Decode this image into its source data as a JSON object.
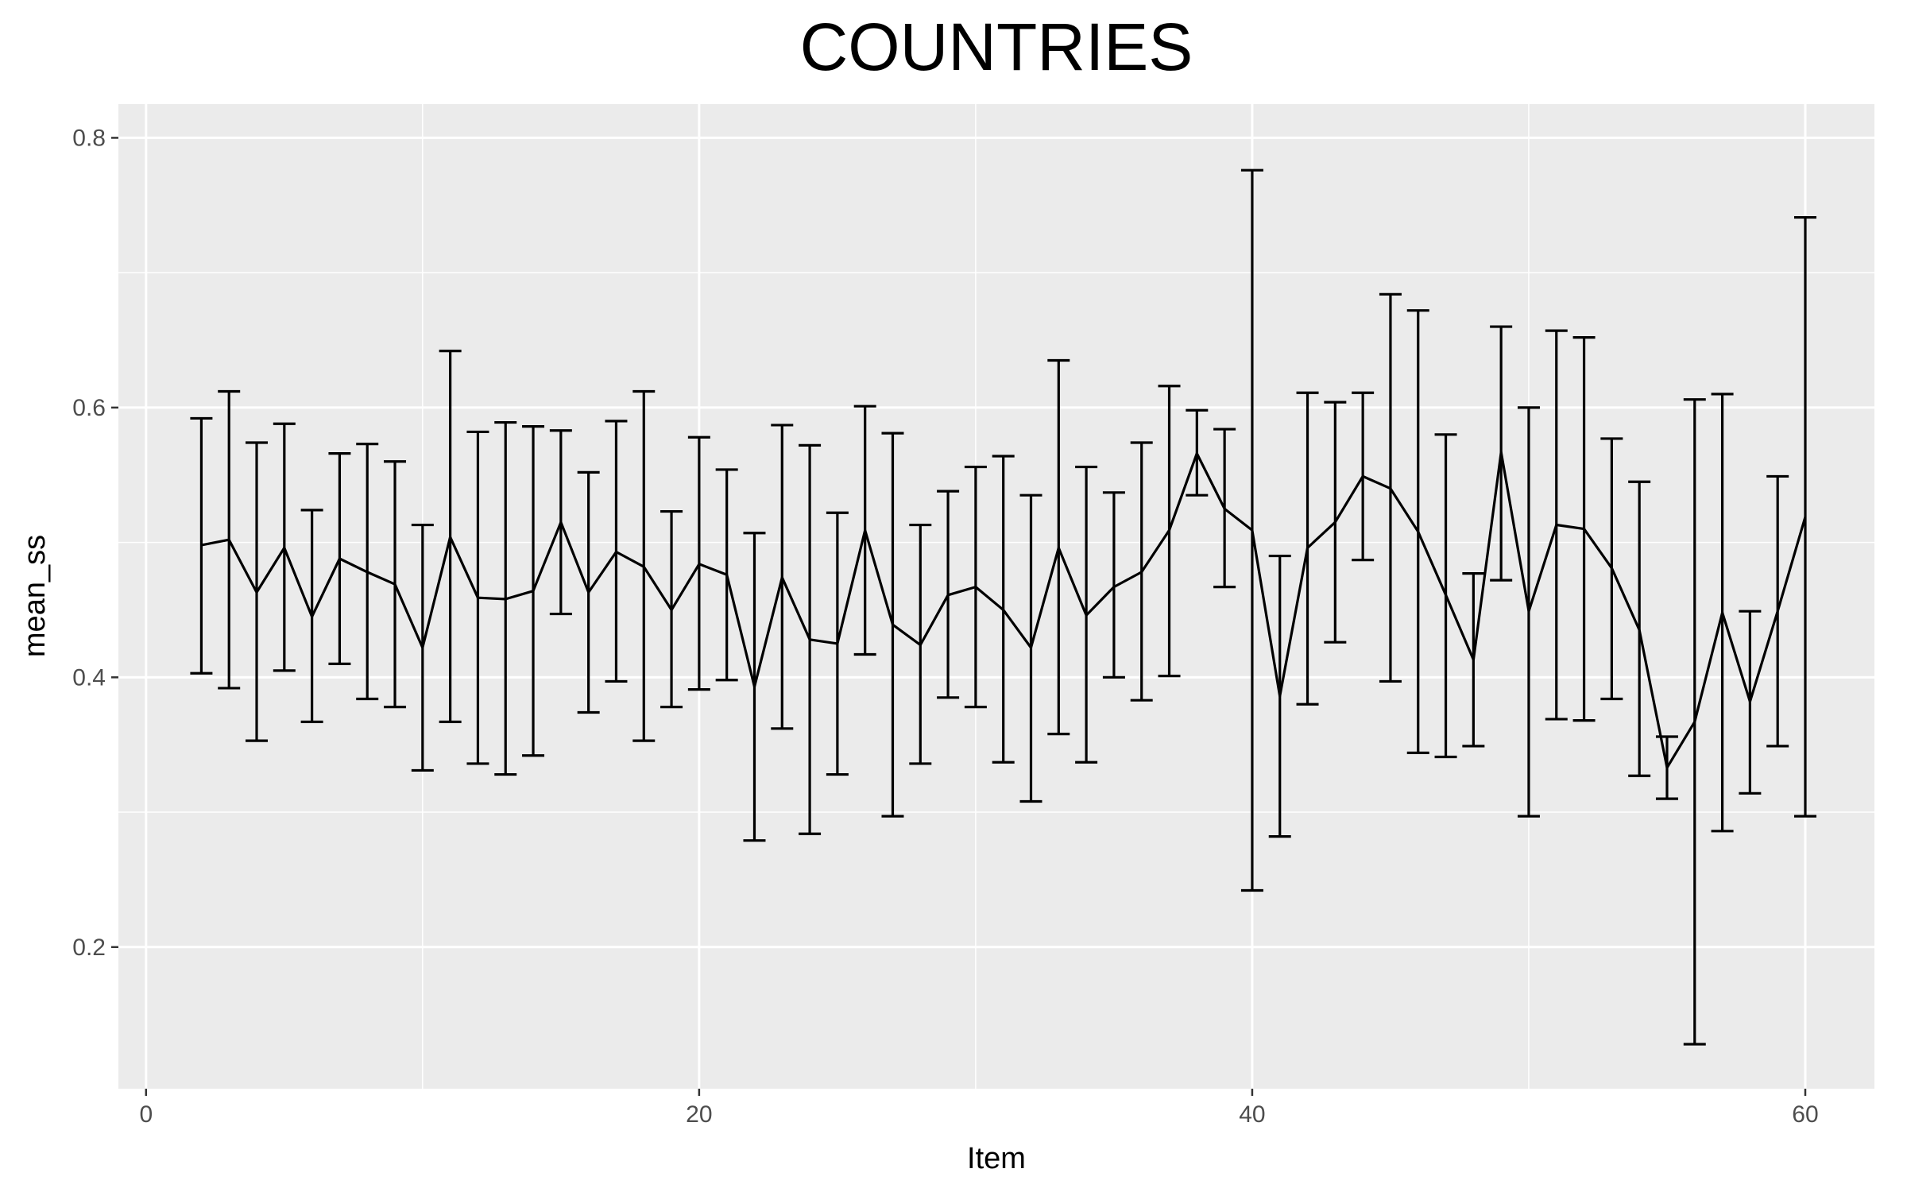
{
  "chart_data": {
    "type": "line",
    "title": "COUNTRIES",
    "xlabel": "Item",
    "ylabel": "mean_ss",
    "xlim": [
      -1,
      62.5
    ],
    "ylim": [
      0.095,
      0.825
    ],
    "xticks": [
      0,
      20,
      40,
      60
    ],
    "xtick_labels": [
      "0",
      "20",
      "40",
      "60"
    ],
    "xminor": [
      10,
      30,
      50
    ],
    "yticks": [
      0.2,
      0.4,
      0.6,
      0.8
    ],
    "ytick_labels": [
      "0.2",
      "0.4",
      "0.6",
      "0.8"
    ],
    "yminor": [
      0.3,
      0.5,
      0.7
    ],
    "grid": true,
    "error_bars": true,
    "series": [
      {
        "x": [
          2,
          3,
          4,
          5,
          6,
          7,
          8,
          9,
          10,
          11,
          12,
          13,
          14,
          15,
          16,
          17,
          18,
          19,
          20,
          21,
          22,
          23,
          24,
          25,
          26,
          27,
          28,
          29,
          30,
          31,
          32,
          33,
          34,
          35,
          36,
          37,
          38,
          39,
          40,
          41,
          42,
          43,
          44,
          45,
          46,
          47,
          48,
          49,
          50,
          51,
          52,
          53,
          54,
          55,
          56,
          57,
          58,
          59,
          60
        ],
        "y": [
          0.498,
          0.502,
          0.463,
          0.496,
          0.445,
          0.488,
          0.478,
          0.469,
          0.422,
          0.504,
          0.459,
          0.458,
          0.464,
          0.515,
          0.463,
          0.493,
          0.482,
          0.45,
          0.484,
          0.476,
          0.393,
          0.474,
          0.428,
          0.425,
          0.509,
          0.439,
          0.424,
          0.461,
          0.467,
          0.45,
          0.422,
          0.496,
          0.446,
          0.467,
          0.478,
          0.509,
          0.566,
          0.525,
          0.509,
          0.386,
          0.496,
          0.515,
          0.549,
          0.54,
          0.508,
          0.461,
          0.413,
          0.567,
          0.449,
          0.513,
          0.51,
          0.481,
          0.435,
          0.333,
          0.367,
          0.448,
          0.382,
          0.449,
          0.519
        ],
        "ymin": [
          0.403,
          0.392,
          0.353,
          0.405,
          0.367,
          0.41,
          0.384,
          0.378,
          0.331,
          0.367,
          0.336,
          0.328,
          0.342,
          0.447,
          0.374,
          0.397,
          0.353,
          0.378,
          0.391,
          0.398,
          0.279,
          0.362,
          0.284,
          0.328,
          0.417,
          0.297,
          0.336,
          0.385,
          0.378,
          0.337,
          0.308,
          0.358,
          0.337,
          0.4,
          0.383,
          0.401,
          0.535,
          0.467,
          0.242,
          0.282,
          0.38,
          0.426,
          0.487,
          0.397,
          0.344,
          0.341,
          0.349,
          0.472,
          0.297,
          0.369,
          0.368,
          0.384,
          0.327,
          0.31,
          0.128,
          0.286,
          0.314,
          0.349,
          0.297
        ],
        "ymax": [
          0.592,
          0.612,
          0.574,
          0.588,
          0.524,
          0.566,
          0.573,
          0.56,
          0.513,
          0.642,
          0.582,
          0.589,
          0.586,
          0.583,
          0.552,
          0.59,
          0.612,
          0.523,
          0.578,
          0.554,
          0.507,
          0.587,
          0.572,
          0.522,
          0.601,
          0.581,
          0.513,
          0.538,
          0.556,
          0.564,
          0.535,
          0.635,
          0.556,
          0.537,
          0.574,
          0.616,
          0.598,
          0.584,
          0.776,
          0.49,
          0.611,
          0.604,
          0.611,
          0.684,
          0.672,
          0.58,
          0.477,
          0.66,
          0.6,
          0.657,
          0.652,
          0.577,
          0.545,
          0.356,
          0.606,
          0.61,
          0.449,
          0.549,
          0.741
        ]
      }
    ]
  }
}
